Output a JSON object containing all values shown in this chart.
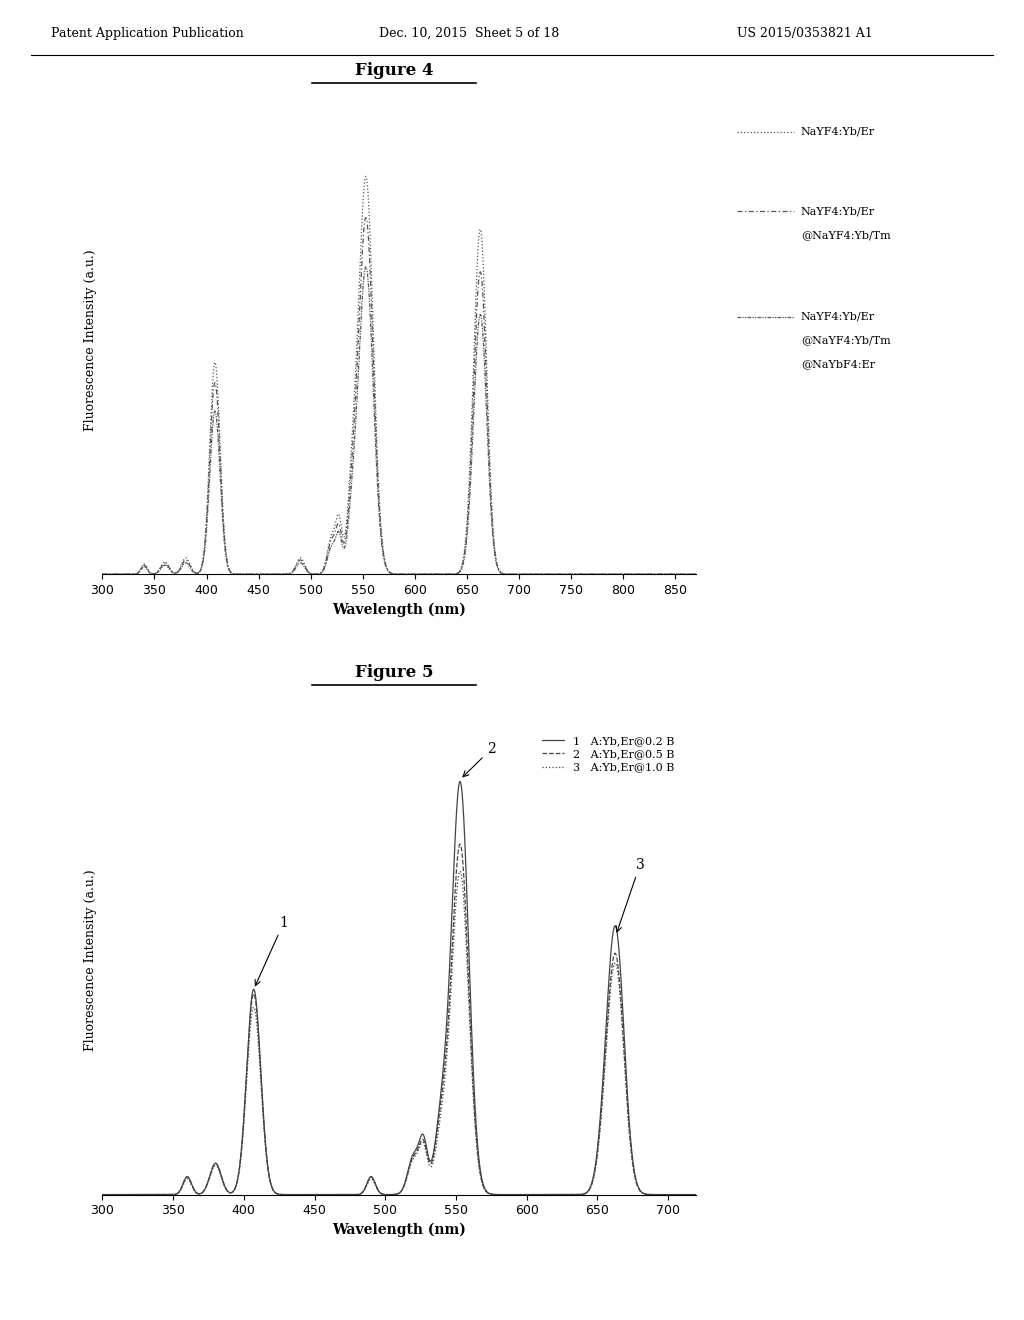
{
  "header_left": "Patent Application Publication",
  "header_middle": "Dec. 10, 2015  Sheet 5 of 18",
  "header_right": "US 2015/0353821 A1",
  "fig4_title": "Figure 4",
  "fig5_title": "Figure 5",
  "fig4_xlabel": "Wavelength (nm)",
  "fig4_ylabel": "Fluorescence Intensity (a.u.)",
  "fig4_xlim": [
    300,
    870
  ],
  "fig4_xticks": [
    300,
    350,
    400,
    450,
    500,
    550,
    600,
    650,
    700,
    750,
    800,
    850
  ],
  "fig5_xlabel": "Wavelength (nm)",
  "fig5_ylabel": "Fluorescence Intensity (a.u.)",
  "fig5_xlim": [
    300,
    720
  ],
  "fig5_xticks": [
    300,
    350,
    400,
    450,
    500,
    550,
    600,
    650,
    700
  ],
  "background_color": "#ffffff",
  "text_color": "#000000",
  "fig4_legend": [
    "NaYF4:Yb/Er",
    "NaYF4:Yb/Er\n@NaYF4:Yb/Tm",
    "NaYF4:Yb/Er\n@NaYF4:Yb/Tm\n@NaYbF4:Er"
  ],
  "fig5_legend": [
    "1   A:Yb,Er@0.2 B",
    "2   A:Yb,Er@0.5 B",
    "3   A:Yb,Er@1.0 B"
  ]
}
